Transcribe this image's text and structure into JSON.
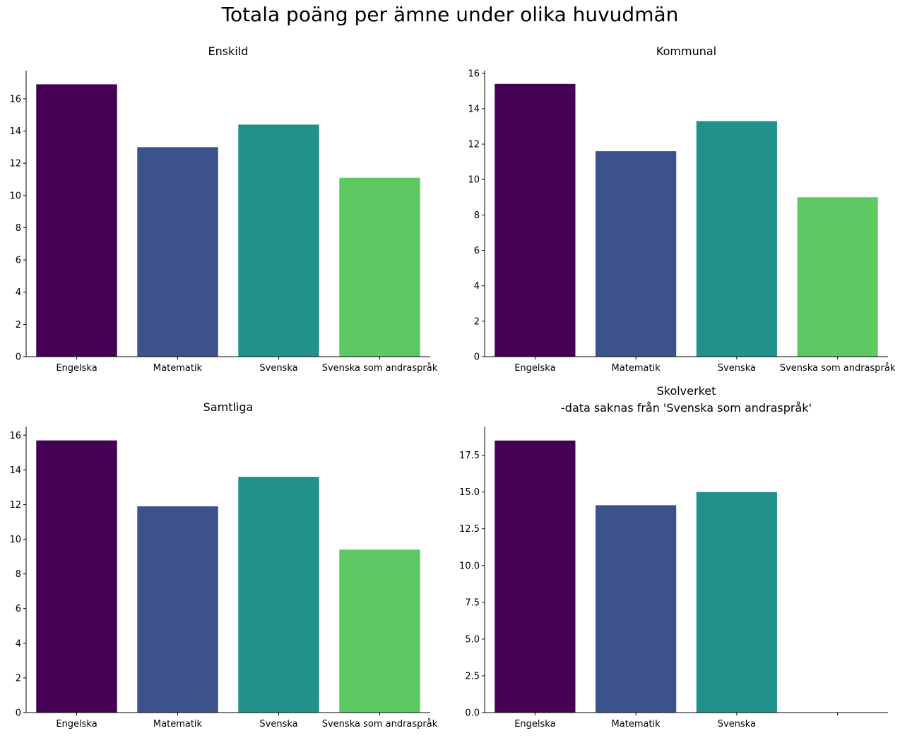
{
  "suptitle": "Totala poäng per ämne under olika huvudmän",
  "colors": {
    "Engelska": "#440154",
    "Matematik": "#3b528b",
    "Svenska": "#21918c",
    "Svenska som andraspråk": "#5ec962"
  },
  "chart_data": [
    {
      "type": "bar",
      "title": "Enskild",
      "categories": [
        "Engelska",
        "Matematik",
        "Svenska",
        "Svenska som andraspråk"
      ],
      "values": [
        16.9,
        13.0,
        14.4,
        11.1
      ],
      "ylim": [
        0,
        17.75
      ],
      "yticks": [
        0,
        2,
        4,
        6,
        8,
        10,
        12,
        14,
        16
      ],
      "ytick_labels": [
        "0",
        "2",
        "4",
        "6",
        "8",
        "10",
        "12",
        "14",
        "16"
      ],
      "xlabel": "",
      "ylabel": "",
      "grid": false,
      "legend": "none"
    },
    {
      "type": "bar",
      "title": "Kommunal",
      "categories": [
        "Engelska",
        "Matematik",
        "Svenska",
        "Svenska som andraspråk"
      ],
      "values": [
        15.4,
        11.6,
        13.3,
        9.0
      ],
      "ylim": [
        0,
        16.15
      ],
      "yticks": [
        0,
        2,
        4,
        6,
        8,
        10,
        12,
        14,
        16
      ],
      "ytick_labels": [
        "0",
        "2",
        "4",
        "6",
        "8",
        "10",
        "12",
        "14",
        "16"
      ],
      "xlabel": "",
      "ylabel": "",
      "grid": false,
      "legend": "none"
    },
    {
      "type": "bar",
      "title": "Samtliga",
      "categories": [
        "Engelska",
        "Matematik",
        "Svenska",
        "Svenska som andraspråk"
      ],
      "values": [
        15.7,
        11.9,
        13.6,
        9.4
      ],
      "ylim": [
        0,
        16.5
      ],
      "yticks": [
        0,
        2,
        4,
        6,
        8,
        10,
        12,
        14,
        16
      ],
      "ytick_labels": [
        "0",
        "2",
        "4",
        "6",
        "8",
        "10",
        "12",
        "14",
        "16"
      ],
      "xlabel": "",
      "ylabel": "",
      "grid": false,
      "legend": "none"
    },
    {
      "type": "bar",
      "title": "Skolverket\n-data saknas från 'Svenska som andraspråk'",
      "categories": [
        "Engelska",
        "Matematik",
        "Svenska",
        ""
      ],
      "values": [
        18.5,
        14.1,
        15.0,
        null
      ],
      "ylim": [
        0,
        19.45
      ],
      "yticks": [
        0,
        2.5,
        5.0,
        7.5,
        10.0,
        12.5,
        15.0,
        17.5
      ],
      "ytick_labels": [
        "0.0",
        "2.5",
        "5.0",
        "7.5",
        "10.0",
        "12.5",
        "15.0",
        "17.5"
      ],
      "xlabel": "",
      "ylabel": "",
      "grid": false,
      "legend": "none"
    }
  ]
}
